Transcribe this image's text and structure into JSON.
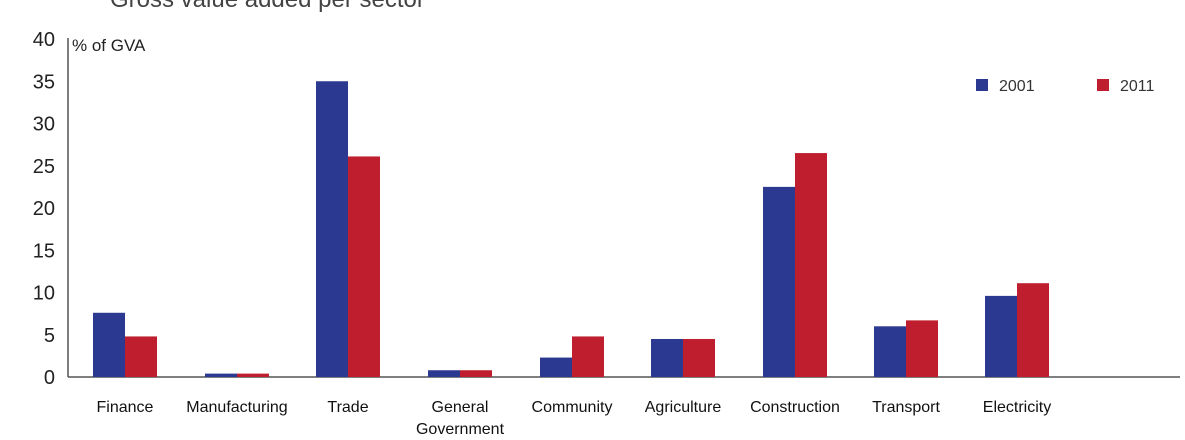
{
  "chart_data": {
    "type": "bar",
    "title": "Gross value added per sector",
    "ylabel": "% of GVA",
    "ylim": [
      0,
      40
    ],
    "yticks": [
      "0",
      "5",
      "10",
      "15",
      "20",
      "25",
      "30",
      "35",
      "40"
    ],
    "categories": [
      "Finance",
      "Manufacturing",
      "Trade",
      "General Government",
      "Community",
      "Agriculture",
      "Construction",
      "Transport",
      "Electricity"
    ],
    "series": [
      {
        "name": "2001",
        "color": "#2b3990",
        "values": [
          7.6,
          0.4,
          35.0,
          0.8,
          2.3,
          4.5,
          22.5,
          6.0,
          9.6
        ]
      },
      {
        "name": "2011",
        "color": "#be1e2d",
        "values": [
          4.8,
          0.4,
          26.1,
          0.8,
          4.8,
          4.5,
          26.5,
          6.7,
          11.1
        ]
      }
    ],
    "legend": "top-right",
    "grid": false
  }
}
